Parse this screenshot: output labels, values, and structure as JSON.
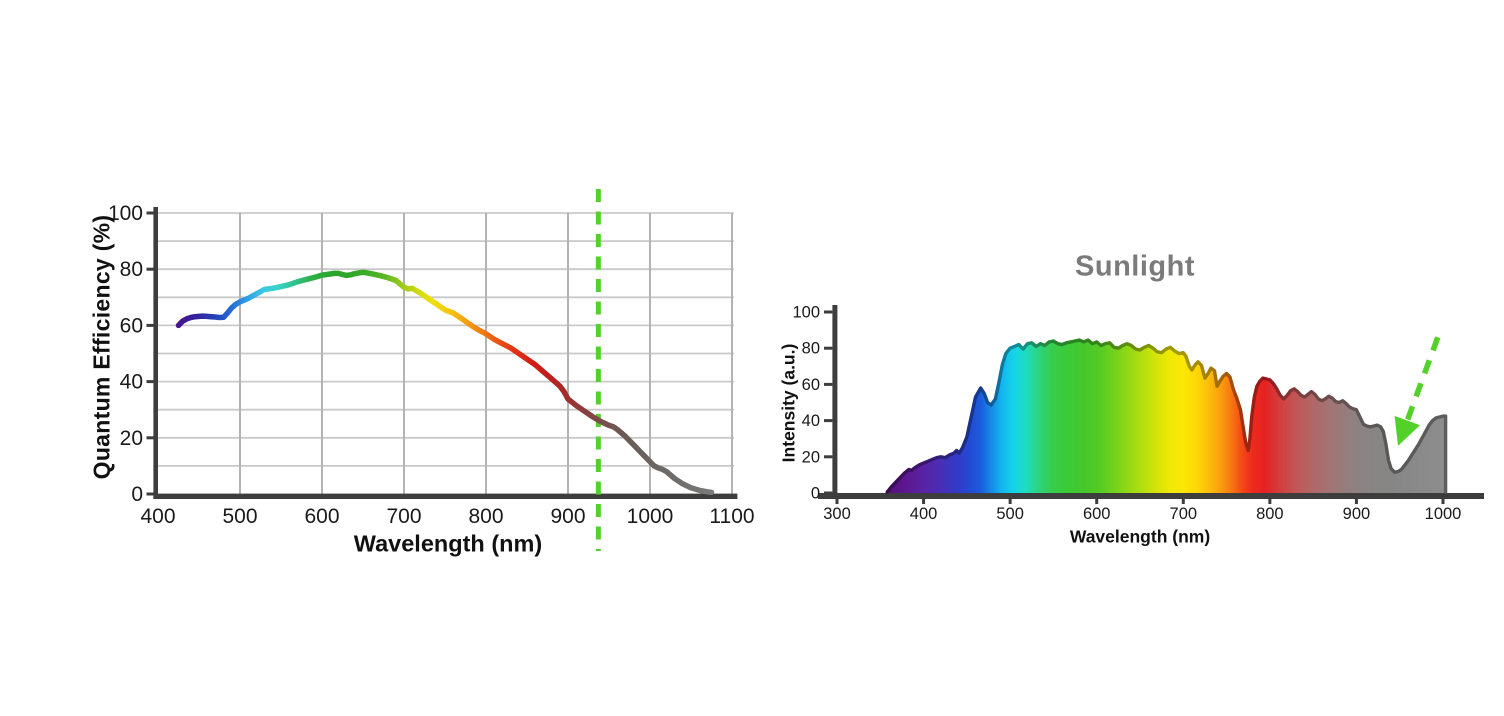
{
  "colors": {
    "background": "#ffffff",
    "axis": "#3d3d3d",
    "grid_h": "#c9c9c9",
    "grid_v": "#b3b3b3",
    "tick_text": "#1a1a1a",
    "label_text": "#111111",
    "title_gray": "#7b7b7b",
    "accent_green": "#52d228"
  },
  "labels": {
    "left_xlabel": "Wavelength (nm)",
    "left_ylabel": "Quantum Efficiency (%)",
    "right_title": "Sunlight",
    "right_xlabel": "Wavelength (nm)",
    "right_ylabel": "Intensity (a.u.)"
  },
  "chart_data": [
    {
      "type": "line",
      "name": "sensor-quantum-efficiency",
      "title": "",
      "xlabel": "Wavelength (nm)",
      "ylabel": "Quantum Efficiency (%)",
      "xlim": [
        400,
        1100
      ],
      "ylim": [
        0,
        100
      ],
      "x_ticks": [
        400,
        500,
        600,
        700,
        800,
        900,
        1000,
        1100
      ],
      "y_ticks": [
        0,
        20,
        40,
        60,
        80,
        100
      ],
      "grid": {
        "horizontal_every": 10,
        "vertical_every": 100,
        "on": true
      },
      "legend": "none",
      "annotation": {
        "type": "dashed-vline",
        "x_nm": 937,
        "color": "#52d228"
      },
      "series": [
        {
          "name": "quantum-efficiency-percent",
          "x": [
            425,
            430,
            435,
            440,
            445,
            450,
            455,
            460,
            465,
            470,
            475,
            480,
            485,
            490,
            495,
            500,
            510,
            520,
            530,
            540,
            550,
            560,
            570,
            580,
            590,
            600,
            610,
            615,
            620,
            625,
            630,
            635,
            640,
            645,
            650,
            655,
            660,
            670,
            680,
            690,
            695,
            700,
            705,
            710,
            715,
            720,
            730,
            740,
            750,
            760,
            770,
            780,
            790,
            800,
            810,
            820,
            830,
            840,
            850,
            860,
            870,
            880,
            890,
            895,
            900,
            910,
            920,
            930,
            940,
            950,
            955,
            960,
            970,
            980,
            990,
            1000,
            1005,
            1010,
            1015,
            1020,
            1030,
            1040,
            1050,
            1060,
            1070,
            1075
          ],
          "y": [
            60,
            61.5,
            62.3,
            62.8,
            63.1,
            63.2,
            63.3,
            63.2,
            63.1,
            63,
            62.8,
            62.9,
            64.5,
            66.3,
            67.5,
            68.4,
            69.6,
            71.2,
            72.8,
            73.2,
            73.8,
            74.5,
            75.5,
            76.3,
            77,
            77.9,
            78.3,
            78.5,
            78.5,
            78.1,
            77.8,
            78,
            78.4,
            78.7,
            78.9,
            78.7,
            78.4,
            77.8,
            77,
            76,
            74.8,
            73.6,
            73,
            73.2,
            72.4,
            71.5,
            69.5,
            67.5,
            65.5,
            64.4,
            62.5,
            60.4,
            58.5,
            57,
            55,
            53.5,
            52,
            50,
            48,
            46,
            43.5,
            41,
            38.4,
            36.5,
            33.8,
            31.5,
            29.5,
            27.5,
            25.8,
            24.4,
            24,
            23,
            20.5,
            17.5,
            14.5,
            11.5,
            10,
            9.3,
            8.8,
            8,
            5.5,
            3.6,
            2.2,
            1.3,
            0.8,
            0.6
          ]
        }
      ],
      "line_color_stops": [
        [
          425,
          "#45148f"
        ],
        [
          448,
          "#34239f"
        ],
        [
          468,
          "#2440b6"
        ],
        [
          488,
          "#2767d2"
        ],
        [
          508,
          "#2f9ce2"
        ],
        [
          528,
          "#3bc9e6"
        ],
        [
          548,
          "#38d2c2"
        ],
        [
          568,
          "#30c08a"
        ],
        [
          588,
          "#2fae44"
        ],
        [
          615,
          "#2ca32b"
        ],
        [
          650,
          "#35ab28"
        ],
        [
          675,
          "#58b426"
        ],
        [
          695,
          "#93c81b"
        ],
        [
          715,
          "#cdd910"
        ],
        [
          735,
          "#eee00b"
        ],
        [
          755,
          "#f6c60d"
        ],
        [
          775,
          "#f4a211"
        ],
        [
          795,
          "#ee7d12"
        ],
        [
          815,
          "#e85413"
        ],
        [
          835,
          "#e13318"
        ],
        [
          855,
          "#d51d14"
        ],
        [
          875,
          "#bf1f1f"
        ],
        [
          895,
          "#a52b2b"
        ],
        [
          915,
          "#8e3b3b"
        ],
        [
          935,
          "#7c4a45"
        ],
        [
          955,
          "#715651"
        ],
        [
          975,
          "#6a5d58"
        ],
        [
          1000,
          "#6b6561"
        ],
        [
          1030,
          "#6e6c6a"
        ],
        [
          1075,
          "#7a7a7a"
        ]
      ]
    },
    {
      "type": "area",
      "name": "sunlight-spectrum",
      "title": "Sunlight",
      "xlabel": "Wavelength (nm)",
      "ylabel": "Intensity (a.u.)",
      "xlim": [
        300,
        1000
      ],
      "ylim": [
        0,
        100
      ],
      "x_ticks": [
        300,
        400,
        500,
        600,
        700,
        800,
        900,
        1000
      ],
      "y_ticks": [
        0,
        20,
        40,
        60,
        80,
        100
      ],
      "grid": {
        "on": false
      },
      "legend": "none",
      "annotation": {
        "type": "dashed-arrow",
        "from_xy": [
          994,
          86
        ],
        "tip_xy": [
          948,
          26
        ],
        "color": "#52d228"
      },
      "series": [
        {
          "name": "sunlight-intensity-au",
          "x": [
            358,
            363,
            368,
            373,
            378,
            383,
            386,
            390,
            395,
            400,
            405,
            410,
            415,
            420,
            425,
            430,
            435,
            438,
            441,
            445,
            450,
            455,
            460,
            466,
            470,
            474,
            478,
            483,
            487,
            491,
            495,
            500,
            505,
            510,
            515,
            520,
            525,
            530,
            535,
            540,
            545,
            550,
            555,
            560,
            565,
            570,
            575,
            580,
            585,
            590,
            595,
            600,
            605,
            610,
            615,
            620,
            625,
            630,
            635,
            640,
            645,
            650,
            655,
            660,
            665,
            670,
            675,
            680,
            685,
            690,
            695,
            700,
            703,
            707,
            710,
            714,
            717,
            721,
            725,
            728,
            732,
            736,
            739,
            742,
            746,
            750,
            754,
            758,
            762,
            766,
            769,
            772,
            775,
            777,
            779,
            782,
            785,
            788,
            792,
            796,
            800,
            804,
            808,
            812,
            816,
            820,
            824,
            828,
            832,
            836,
            840,
            844,
            848,
            852,
            856,
            860,
            864,
            868,
            872,
            876,
            880,
            884,
            888,
            892,
            896,
            900,
            904,
            908,
            912,
            916,
            920,
            924,
            928,
            931,
            934,
            937,
            940,
            944,
            948,
            952,
            956,
            960,
            964,
            968,
            972,
            976,
            980,
            984,
            988,
            992,
            996,
            1000,
            1003
          ],
          "y": [
            0.5,
            3.5,
            6,
            8.5,
            11,
            13,
            12.5,
            14,
            15.5,
            16.5,
            17.5,
            18.5,
            19.5,
            20,
            19.5,
            21,
            22,
            23.5,
            22,
            25,
            31,
            42,
            53,
            58,
            55,
            50,
            48.5,
            52,
            61,
            71,
            77,
            80,
            81,
            82,
            79.5,
            82.5,
            83,
            81,
            82.5,
            81.5,
            83.5,
            84,
            82.5,
            82,
            83,
            83.5,
            84,
            84.5,
            83.5,
            84.5,
            82.5,
            83.5,
            81.5,
            82.5,
            83,
            80.5,
            80,
            81.5,
            82.5,
            81.5,
            79.5,
            79,
            80.5,
            81.5,
            80,
            78,
            77.5,
            79.5,
            80.5,
            78.5,
            77,
            77.5,
            75.5,
            70,
            68,
            71,
            72.5,
            70.5,
            63.5,
            65.5,
            69,
            67.5,
            59,
            61.5,
            64.5,
            66,
            64,
            57,
            52,
            46,
            37,
            28,
            23.5,
            30,
            42,
            53,
            59,
            61.5,
            63.5,
            63,
            62.5,
            60.5,
            57.5,
            54,
            52,
            54,
            56.5,
            57.5,
            56,
            54,
            53,
            54.5,
            56,
            54.5,
            52,
            51,
            52,
            53.5,
            52.5,
            50.5,
            50,
            51,
            49.5,
            47.5,
            46.5,
            46,
            42,
            38,
            37,
            36.5,
            37,
            37.5,
            36.5,
            34,
            27,
            18,
            13.5,
            11.5,
            11.8,
            13,
            15.5,
            18,
            21,
            24,
            27,
            30.5,
            34,
            37.5,
            40,
            41.5,
            42,
            42.5,
            42.5
          ]
        }
      ],
      "fill_color_stops": [
        [
          358,
          "#531279"
        ],
        [
          378,
          "#5d1690"
        ],
        [
          398,
          "#5a22a2"
        ],
        [
          418,
          "#4a2db5"
        ],
        [
          438,
          "#333ac6"
        ],
        [
          452,
          "#2449d3"
        ],
        [
          466,
          "#1c5cdc"
        ],
        [
          478,
          "#1789e7"
        ],
        [
          490,
          "#13b5ee"
        ],
        [
          504,
          "#15d3eb"
        ],
        [
          518,
          "#1edcc0"
        ],
        [
          532,
          "#2bd584"
        ],
        [
          548,
          "#36cd4e"
        ],
        [
          566,
          "#3cca36"
        ],
        [
          586,
          "#45c72c"
        ],
        [
          606,
          "#58cc22"
        ],
        [
          626,
          "#7ed419"
        ],
        [
          646,
          "#a6dc11"
        ],
        [
          666,
          "#d0e30b"
        ],
        [
          684,
          "#efe805"
        ],
        [
          700,
          "#fbe704"
        ],
        [
          716,
          "#fdd707"
        ],
        [
          732,
          "#fbb80c"
        ],
        [
          746,
          "#f9950f"
        ],
        [
          758,
          "#f76e12"
        ],
        [
          769,
          "#f34517"
        ],
        [
          780,
          "#ee2a1d"
        ],
        [
          794,
          "#e52222"
        ],
        [
          810,
          "#d43c3c"
        ],
        [
          830,
          "#c25656"
        ],
        [
          850,
          "#b06868"
        ],
        [
          870,
          "#a17474"
        ],
        [
          890,
          "#947e7e"
        ],
        [
          912,
          "#8a8484"
        ],
        [
          940,
          "#868686"
        ],
        [
          1003,
          "#8d8d8d"
        ]
      ]
    }
  ]
}
